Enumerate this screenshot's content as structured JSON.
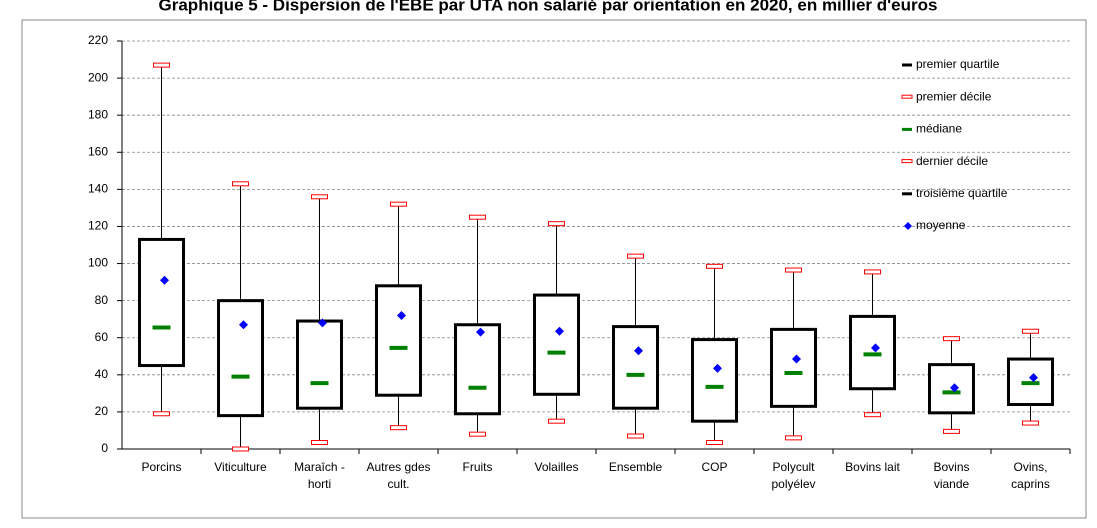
{
  "chart_data": {
    "type": "box",
    "title": "Graphique 5 - Dispersion de l'EBE par UTA non salarié par orientation en 2020, en millier d'euros",
    "categories": [
      "Porcins",
      "Viticulture",
      "Maraîch - horti",
      "Autres gdes cult.",
      "Fruits",
      "Volailles",
      "Ensemble",
      "COP",
      "Polycult polyélev",
      "Bovins lait",
      "Bovins viande",
      "Ovins, caprins"
    ],
    "series": [
      {
        "name": "premier quartile",
        "color": "#000000",
        "values": [
          45,
          18,
          22,
          29,
          19,
          29.5,
          22,
          15,
          23,
          32.5,
          19.5,
          24
        ]
      },
      {
        "name": "premier décile",
        "color": "#ff0000",
        "values": [
          19,
          0,
          3.5,
          11.5,
          8,
          15,
          7,
          3.5,
          6,
          18.5,
          9.5,
          14
        ]
      },
      {
        "name": "médiane",
        "color": "#008000",
        "values": [
          65.5,
          39,
          35.5,
          54.5,
          33,
          52,
          40,
          33.5,
          41,
          51,
          30.5,
          35.5
        ]
      },
      {
        "name": "dernier décile",
        "color": "#ff0000",
        "values": [
          207,
          143,
          136,
          132,
          125,
          121.5,
          104,
          98.5,
          96.5,
          95.5,
          59.5,
          63.5
        ]
      },
      {
        "name": "troisième quartile",
        "color": "#000000",
        "values": [
          113,
          80,
          69,
          88,
          67,
          83,
          66,
          59,
          64.5,
          71.5,
          45.5,
          48.5
        ]
      },
      {
        "name": "moyenne",
        "color": "#0000ff",
        "values": [
          91,
          67,
          68,
          72,
          63,
          63.5,
          53,
          43.5,
          48.5,
          54.5,
          33,
          38.5
        ]
      }
    ],
    "ylim": [
      0,
      220
    ],
    "yticks": [
      0,
      20,
      40,
      60,
      80,
      100,
      120,
      140,
      160,
      180,
      200,
      220
    ],
    "grid": true
  }
}
